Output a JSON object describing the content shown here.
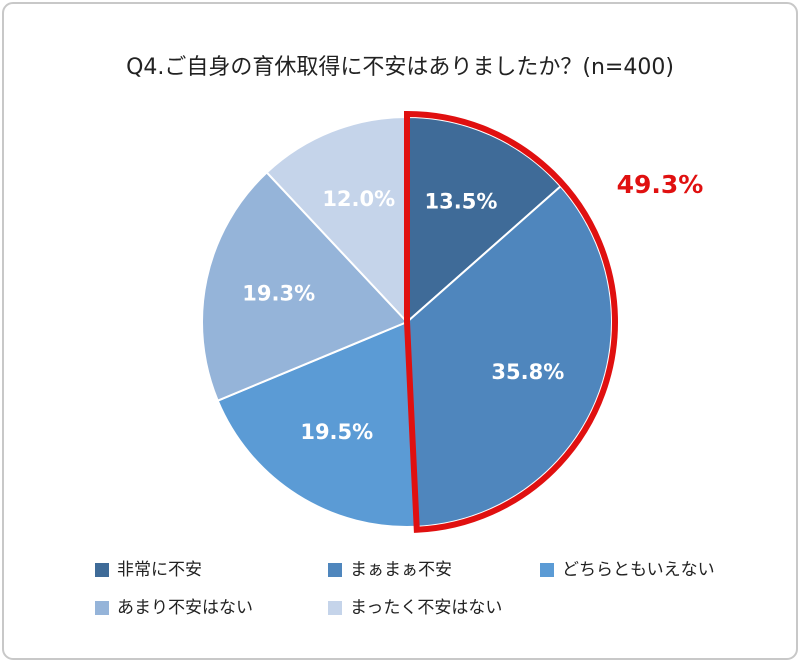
{
  "chart_data": {
    "type": "pie",
    "title": "Q4.ご自身の育休取得に不安はありましたか？(n=400)",
    "categories": [
      "非常に不安",
      "まぁまぁ不安",
      "どちらともいえない",
      "あまり不安はない",
      "まったく不安はない"
    ],
    "values": [
      13.5,
      35.8,
      19.5,
      19.3,
      12.0
    ],
    "value_labels": [
      "13.5%",
      "35.8%",
      "19.5%",
      "19.3%",
      "12.0%"
    ],
    "colors": [
      "#3f6b98",
      "#4f86bd",
      "#5b9bd5",
      "#95b4d9",
      "#c5d4ea"
    ],
    "highlight": {
      "value": 49.3,
      "label": "49.3%",
      "color": "#e01010"
    }
  }
}
